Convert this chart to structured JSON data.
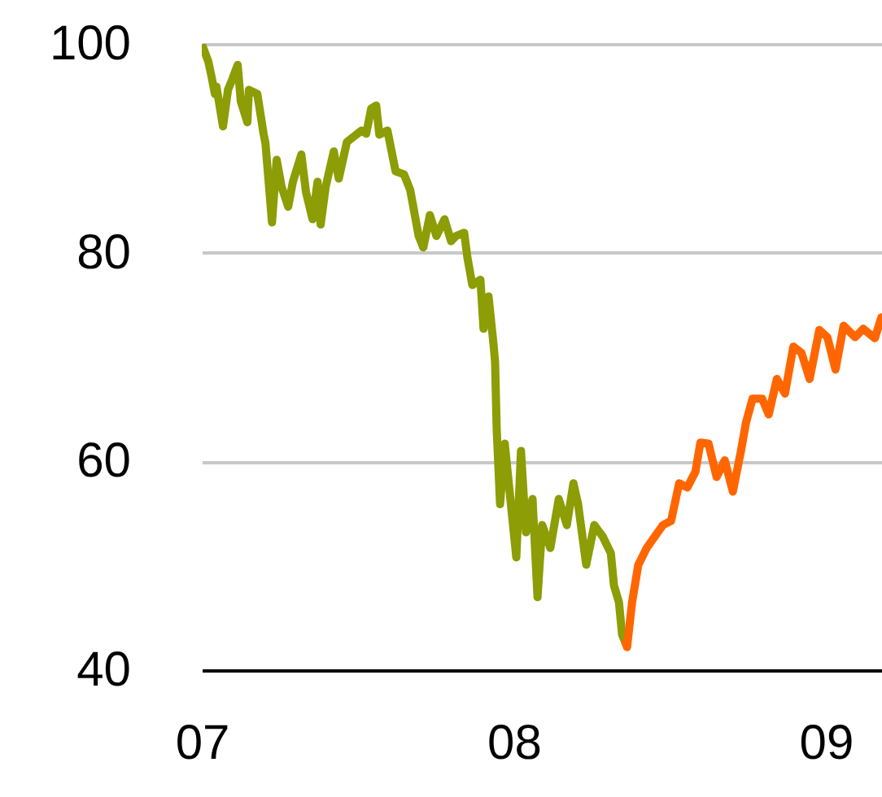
{
  "chart_data": {
    "type": "line",
    "xlim": [
      2007,
      2009.18
    ],
    "ylim": [
      40,
      100
    ],
    "xticks": [
      {
        "value": 2007,
        "label": "07"
      },
      {
        "value": 2008,
        "label": "08"
      },
      {
        "value": 2009,
        "label": "09"
      }
    ],
    "yticks": [
      40,
      60,
      80,
      100
    ],
    "grid": "y",
    "series": [
      {
        "color": "#8c9d06",
        "x": [
          2007.0,
          2007.021,
          2007.031,
          2007.042,
          2007.047,
          2007.068,
          2007.084,
          2007.099,
          2007.115,
          2007.125,
          2007.146,
          2007.151,
          2007.178,
          2007.198,
          2007.204,
          2007.225,
          2007.24,
          2007.256,
          2007.277,
          2007.292,
          2007.319,
          2007.334,
          2007.355,
          2007.371,
          2007.381,
          2007.397,
          2007.423,
          2007.439,
          2007.465,
          2007.512,
          2007.527,
          2007.543,
          2007.559,
          2007.569,
          2007.595,
          2007.621,
          2007.648,
          2007.668,
          2007.695,
          2007.71,
          2007.731,
          2007.752,
          2007.778,
          2007.799,
          2007.815,
          2007.841,
          2007.851,
          2007.867,
          2007.893,
          2007.903,
          2007.919,
          2007.935,
          2007.94,
          2007.945,
          2007.956,
          2007.971,
          2008.008,
          2008.023,
          2008.039,
          2008.06,
          2008.076,
          2008.091,
          2008.117,
          2008.144,
          2008.17,
          2008.191,
          2008.206,
          2008.232,
          2008.258,
          2008.285,
          2008.311,
          2008.321,
          2008.337,
          2008.347,
          2008.358
        ],
        "values": [
          100.0,
          98.3,
          96.9,
          95.2,
          95.9,
          92.1,
          95.6,
          96.7,
          98.0,
          94.5,
          92.5,
          95.6,
          95.2,
          91.4,
          90.5,
          82.9,
          88.9,
          86.3,
          84.4,
          86.8,
          89.4,
          85.8,
          83.2,
          86.8,
          82.7,
          86.3,
          89.7,
          87.1,
          90.6,
          91.7,
          91.4,
          93.8,
          94.1,
          91.3,
          91.7,
          87.8,
          87.5,
          86.0,
          81.6,
          80.5,
          83.6,
          81.6,
          83.2,
          81.1,
          81.6,
          81.9,
          79.6,
          76.9,
          77.4,
          72.7,
          75.8,
          71.2,
          69.5,
          63.2,
          55.9,
          61.7,
          50.8,
          61.0,
          53.2,
          56.4,
          47.0,
          53.9,
          51.7,
          56.4,
          53.9,
          57.9,
          55.9,
          50.1,
          53.9,
          52.8,
          51.2,
          48.1,
          46.5,
          43.4,
          42.6
        ]
      },
      {
        "color": "#ff6600",
        "x": [
          2008.358,
          2008.363,
          2008.379,
          2008.399,
          2008.426,
          2008.452,
          2008.478,
          2008.504,
          2008.53,
          2008.556,
          2008.582,
          2008.598,
          2008.624,
          2008.65,
          2008.676,
          2008.702,
          2008.728,
          2008.744,
          2008.765,
          2008.796,
          2008.817,
          2008.843,
          2008.869,
          2008.896,
          2008.922,
          2008.948,
          2008.979,
          2009.005,
          2009.031,
          2009.057,
          2009.094,
          2009.12,
          2009.157,
          2009.178
        ],
        "values": [
          42.6,
          42.2,
          46.5,
          50.1,
          51.7,
          52.8,
          53.9,
          54.3,
          57.9,
          57.5,
          59.0,
          61.8,
          61.7,
          58.5,
          60.1,
          57.1,
          61.0,
          63.7,
          66.0,
          66.0,
          64.5,
          67.9,
          66.5,
          71.0,
          70.4,
          67.9,
          72.6,
          71.9,
          68.8,
          73.0,
          71.9,
          72.7,
          71.8,
          73.8
        ]
      }
    ]
  }
}
